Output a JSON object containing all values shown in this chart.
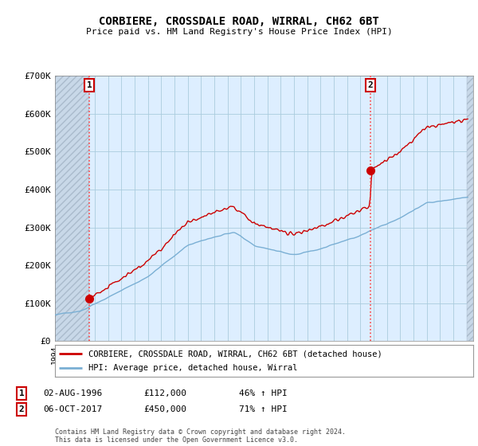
{
  "title": "CORBIERE, CROSSDALE ROAD, WIRRAL, CH62 6BT",
  "subtitle": "Price paid vs. HM Land Registry's House Price Index (HPI)",
  "ylim": [
    0,
    700000
  ],
  "yticks": [
    0,
    100000,
    200000,
    300000,
    400000,
    500000,
    600000,
    700000
  ],
  "ytick_labels": [
    "£0",
    "£100K",
    "£200K",
    "£300K",
    "£400K",
    "£500K",
    "£600K",
    "£700K"
  ],
  "xlim_start": 1994.0,
  "xlim_end": 2025.5,
  "purchase1_x": 1996.585,
  "purchase1_y": 112000,
  "purchase1_label": "1",
  "purchase1_date": "02-AUG-1996",
  "purchase1_price": "£112,000",
  "purchase1_hpi": "46% ↑ HPI",
  "purchase2_x": 2017.75,
  "purchase2_y": 450000,
  "purchase2_label": "2",
  "purchase2_date": "06-OCT-2017",
  "purchase2_price": "£450,000",
  "purchase2_hpi": "71% ↑ HPI",
  "legend_line1": "CORBIERE, CROSSDALE ROAD, WIRRAL, CH62 6BT (detached house)",
  "legend_line2": "HPI: Average price, detached house, Wirral",
  "footer": "Contains HM Land Registry data © Crown copyright and database right 2024.\nThis data is licensed under the Open Government Licence v3.0.",
  "property_color": "#cc0000",
  "hpi_color": "#7aafd4",
  "dashed_vline_color": "#ff4444",
  "chart_bg_color": "#ddeeff",
  "background_color": "#ffffff",
  "grid_color": "#aaccdd",
  "hatch_area_color": "#c8d8e8"
}
